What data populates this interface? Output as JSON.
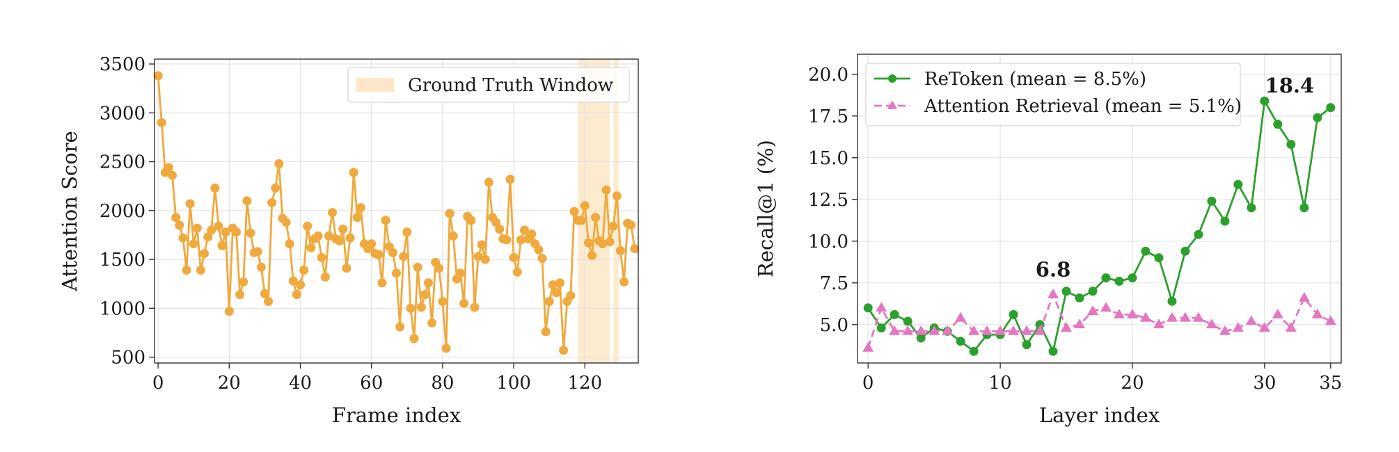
{
  "chart_data": [
    {
      "type": "line",
      "xlabel": "Frame index",
      "ylabel": "Attention Score",
      "xlim": [
        -1,
        135
      ],
      "ylim": [
        440,
        3550
      ],
      "xticks": [
        "0",
        "20",
        "40",
        "60",
        "80",
        "100",
        "120"
      ],
      "yticks": [
        "500",
        "1000",
        "1500",
        "2000",
        "2500",
        "3000",
        "3500"
      ],
      "grid": true,
      "legend_position": "top-right",
      "legend": [
        {
          "label": "Ground Truth Window",
          "color": "#fde7c8",
          "kind": "patch"
        }
      ],
      "highlight_windows": [
        [
          118,
          127
        ],
        [
          128,
          129.5
        ]
      ],
      "highlight_color": "#fde7c8",
      "series": [
        {
          "name": "",
          "color": "#f0a93c",
          "marker": "circle",
          "x": [
            0,
            1,
            2,
            3,
            4,
            5,
            6,
            7,
            8,
            9,
            10,
            11,
            12,
            13,
            14,
            15,
            16,
            17,
            18,
            19,
            20,
            21,
            22,
            23,
            24,
            25,
            26,
            27,
            28,
            29,
            30,
            31,
            32,
            33,
            34,
            35,
            36,
            37,
            38,
            39,
            40,
            41,
            42,
            43,
            44,
            45,
            46,
            47,
            48,
            49,
            50,
            51,
            52,
            53,
            54,
            55,
            56,
            57,
            58,
            59,
            60,
            61,
            62,
            63,
            64,
            65,
            66,
            67,
            68,
            69,
            70,
            71,
            72,
            73,
            74,
            75,
            76,
            77,
            78,
            79,
            80,
            81,
            82,
            83,
            84,
            85,
            86,
            87,
            88,
            89,
            90,
            91,
            92,
            93,
            94,
            95,
            96,
            97,
            98,
            99,
            100,
            101,
            102,
            103,
            104,
            105,
            106,
            107,
            108,
            109,
            110,
            111,
            112,
            113,
            114,
            115,
            116,
            117,
            118,
            119,
            120,
            121,
            122,
            123,
            124,
            125,
            126,
            127,
            128,
            129,
            130,
            131,
            132,
            133,
            134
          ],
          "y": [
            3380,
            2900,
            2390,
            2440,
            2360,
            1930,
            1850,
            1720,
            1390,
            2070,
            1660,
            1820,
            1390,
            1560,
            1730,
            1800,
            2230,
            1840,
            1640,
            1780,
            970,
            1820,
            1780,
            1140,
            1270,
            2100,
            1770,
            1570,
            1580,
            1420,
            1150,
            1070,
            2080,
            2230,
            2480,
            1920,
            1880,
            1660,
            1280,
            1140,
            1240,
            1390,
            1840,
            1620,
            1710,
            1740,
            1520,
            1320,
            1740,
            1980,
            1710,
            1690,
            1810,
            1410,
            1720,
            2390,
            1930,
            2030,
            1660,
            1610,
            1660,
            1560,
            1550,
            1260,
            1900,
            1630,
            1570,
            1360,
            810,
            1530,
            1780,
            1000,
            690,
            1420,
            1010,
            1140,
            1260,
            850,
            1470,
            1410,
            1070,
            590,
            1970,
            1740,
            1300,
            1360,
            1050,
            1940,
            1900,
            1010,
            1530,
            1650,
            1500,
            2290,
            1930,
            1880,
            1810,
            1710,
            1700,
            2320,
            1520,
            1370,
            1700,
            1800,
            1710,
            1760,
            1660,
            1600,
            1510,
            760,
            1070,
            1240,
            1160,
            1260,
            570,
            1070,
            1130,
            1990,
            1900,
            1900,
            2050,
            1670,
            1540,
            1930,
            1690,
            1660,
            2210,
            1680,
            1840,
            2150,
            1590,
            1270,
            1870,
            1850,
            1610
          ]
        }
      ]
    },
    {
      "type": "line",
      "xlabel": "Layer index",
      "ylabel": "Recall@1 (%)",
      "xlim": [
        -0.8,
        35.8
      ],
      "ylim": [
        2.7,
        21.2
      ],
      "xticks": [
        "0",
        "10",
        "20",
        "30",
        "35"
      ],
      "yticks": [
        "5.0",
        "7.5",
        "10.0",
        "12.5",
        "15.0",
        "17.5",
        "20.0"
      ],
      "grid": true,
      "legend_position": "top-left",
      "series": [
        {
          "name": "ReToken (mean = 8.5%)",
          "color": "#2ca02c",
          "marker": "circle",
          "linestyle": "solid",
          "x": [
            0,
            1,
            2,
            3,
            4,
            5,
            6,
            7,
            8,
            9,
            10,
            11,
            12,
            13,
            14,
            15,
            16,
            17,
            18,
            19,
            20,
            21,
            22,
            23,
            24,
            25,
            26,
            27,
            28,
            29,
            30,
            31,
            32,
            33,
            34,
            35
          ],
          "y": [
            6.0,
            4.8,
            5.6,
            5.2,
            4.2,
            4.8,
            4.6,
            4.0,
            3.4,
            4.4,
            4.4,
            5.6,
            3.8,
            5.0,
            3.4,
            7.0,
            6.6,
            7.0,
            7.8,
            7.6,
            7.8,
            9.4,
            9.0,
            6.4,
            9.4,
            10.4,
            12.4,
            11.2,
            13.4,
            12.0,
            18.4,
            17.0,
            15.8,
            12.0,
            17.4,
            18.0
          ]
        },
        {
          "name": "Attention Retrieval (mean = 5.1%)",
          "color": "#e377c2",
          "marker": "triangle",
          "linestyle": "dashed",
          "x": [
            0,
            1,
            2,
            3,
            4,
            5,
            6,
            7,
            8,
            9,
            10,
            11,
            12,
            13,
            14,
            15,
            16,
            17,
            18,
            19,
            20,
            21,
            22,
            23,
            24,
            25,
            26,
            27,
            28,
            29,
            30,
            31,
            32,
            33,
            34,
            35
          ],
          "y": [
            3.6,
            6.0,
            4.6,
            4.6,
            4.6,
            4.6,
            4.6,
            5.4,
            4.6,
            4.6,
            4.6,
            4.6,
            4.6,
            4.6,
            6.8,
            4.8,
            5.0,
            5.8,
            6.0,
            5.6,
            5.6,
            5.4,
            5.0,
            5.4,
            5.4,
            5.4,
            5.0,
            4.6,
            4.8,
            5.2,
            4.8,
            5.6,
            4.8,
            6.6,
            5.6,
            5.2
          ]
        }
      ],
      "annotations": [
        {
          "text": "6.8",
          "x": 14,
          "y": 6.8,
          "color": "#e377c2"
        },
        {
          "text": "18.4",
          "x": 30,
          "y": 18.4,
          "color": "#2ca02c"
        }
      ]
    }
  ]
}
